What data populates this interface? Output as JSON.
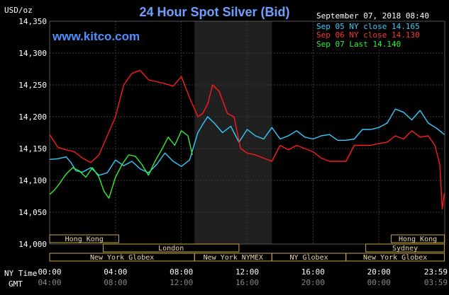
{
  "chart_data": {
    "type": "line",
    "title": "24 Hour Spot Silver (Bid)",
    "watermark": "www.kitco.com",
    "timestamp": "September 07, 2018 08:40",
    "ylabel": "USD/oz",
    "ylim": [
      14.0,
      14.35
    ],
    "yticks": [
      "14,350",
      "14,300",
      "14,250",
      "14,200",
      "14,150",
      "14,100",
      "14,050",
      "14,000"
    ],
    "x_ny_label": "NY Time",
    "x_gmt_label": "GMT",
    "x_ny_ticks": [
      "00:00",
      "04:00",
      "08:00",
      "12:00",
      "16:00",
      "20:00",
      "23:59"
    ],
    "x_gmt_ticks": [
      "04:00",
      "08:00",
      "12:00",
      "16:00",
      "20:00",
      "00:00",
      "03:59"
    ],
    "grid": true,
    "legend_position": "top-right",
    "sessions": [
      {
        "label": "Hong Kong",
        "start": 0.0,
        "end": 4.2,
        "row": 0
      },
      {
        "label": "London",
        "start": 3.25,
        "end": 11.5,
        "row": 1
      },
      {
        "label": "New York Globex",
        "start": 0.0,
        "end": 8.8,
        "row": 2
      },
      {
        "label": "New York NYMEX",
        "start": 8.8,
        "end": 13.5,
        "row": 2
      },
      {
        "label": "NY Globex",
        "start": 13.5,
        "end": 18.0,
        "row": 2
      },
      {
        "label": "Hong Kong",
        "start": 20.75,
        "end": 23.98,
        "row": 0
      },
      {
        "label": "Sydney",
        "start": 19.2,
        "end": 23.98,
        "row": 1
      },
      {
        "label": "New York Globex",
        "start": 18.0,
        "end": 23.98,
        "row": 2
      }
    ],
    "series": [
      {
        "name": "Sep 05 NY close 14.165",
        "color": "#33ccff",
        "x": [
          0,
          0.5,
          1,
          1.3,
          1.6,
          2,
          2.5,
          3,
          3.5,
          4,
          4.5,
          5,
          5.5,
          6,
          6.5,
          7,
          7.5,
          8,
          8.5,
          9,
          9.3,
          9.6,
          10,
          10.5,
          11,
          11.5,
          12,
          12.5,
          13,
          13.5,
          14,
          14.5,
          15,
          15.5,
          16,
          16.5,
          17,
          17.5,
          18,
          18.5,
          19,
          19.5,
          20,
          20.5,
          21,
          21.5,
          22,
          22.5,
          23,
          23.5,
          23.98
        ],
        "y": [
          14.133,
          14.134,
          14.137,
          14.128,
          14.115,
          14.113,
          14.12,
          14.108,
          14.112,
          14.132,
          14.123,
          14.13,
          14.118,
          14.112,
          14.125,
          14.143,
          14.13,
          14.122,
          14.132,
          14.175,
          14.188,
          14.2,
          14.19,
          14.175,
          14.185,
          14.16,
          14.18,
          14.17,
          14.165,
          14.183,
          14.165,
          14.17,
          14.178,
          14.168,
          14.165,
          14.17,
          14.172,
          14.163,
          14.163,
          14.165,
          14.18,
          14.18,
          14.183,
          14.19,
          14.212,
          14.207,
          14.195,
          14.21,
          14.19,
          14.182,
          14.172
        ]
      },
      {
        "name": "Sep 06 NY close 14.130",
        "color": "#ff1a1a",
        "x": [
          0,
          0.5,
          1,
          1.5,
          2,
          2.5,
          3,
          3.5,
          4,
          4.5,
          5,
          5.5,
          6,
          6.5,
          7,
          7.5,
          8,
          8.5,
          9,
          9.3,
          9.6,
          9.9,
          10.3,
          10.8,
          11.2,
          11.6,
          12,
          12.5,
          13,
          13.5,
          14,
          14.5,
          15,
          15.5,
          16,
          16.5,
          17,
          17.5,
          18,
          18.5,
          19,
          19.5,
          20,
          20.5,
          21,
          21.5,
          22,
          22.5,
          23,
          23.4,
          23.7,
          23.85,
          23.98
        ],
        "y": [
          14.172,
          14.152,
          14.148,
          14.145,
          14.135,
          14.128,
          14.14,
          14.17,
          14.2,
          14.25,
          14.268,
          14.273,
          14.258,
          14.255,
          14.252,
          14.248,
          14.263,
          14.23,
          14.2,
          14.205,
          14.22,
          14.25,
          14.24,
          14.205,
          14.2,
          14.15,
          14.143,
          14.14,
          14.135,
          14.13,
          14.155,
          14.148,
          14.155,
          14.15,
          14.145,
          14.135,
          14.13,
          14.13,
          14.13,
          14.155,
          14.155,
          14.155,
          14.158,
          14.16,
          14.17,
          14.165,
          14.178,
          14.168,
          14.17,
          14.155,
          14.125,
          14.055,
          14.08
        ]
      },
      {
        "name": "Sep 07 Last 14.140",
        "color": "#33ee33",
        "x": [
          0,
          0.3,
          0.6,
          1,
          1.4,
          1.8,
          2.2,
          2.6,
          3,
          3.3,
          3.6,
          4,
          4.4,
          4.8,
          5.2,
          5.6,
          6,
          6.4,
          6.8,
          7.2,
          7.6,
          8,
          8.4,
          8.67
        ],
        "y": [
          14.078,
          14.085,
          14.095,
          14.11,
          14.12,
          14.115,
          14.105,
          14.12,
          14.105,
          14.083,
          14.072,
          14.105,
          14.125,
          14.14,
          14.138,
          14.125,
          14.108,
          14.13,
          14.148,
          14.168,
          14.155,
          14.178,
          14.17,
          14.14
        ]
      }
    ]
  }
}
